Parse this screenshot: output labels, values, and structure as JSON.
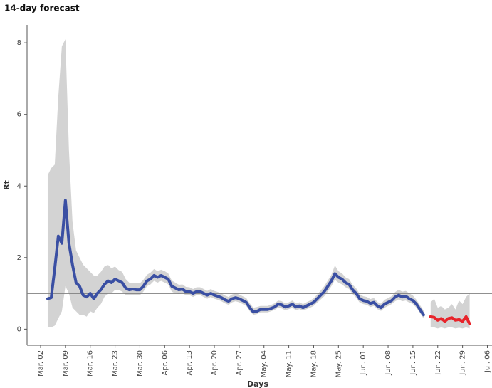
{
  "chart_data": {
    "type": "line",
    "title": "14-day forecast",
    "x_label": "Days",
    "y_label": "Rt",
    "x": [
      "Mar. 02",
      null,
      null,
      null,
      null,
      null,
      null,
      "Mar. 09",
      null,
      null,
      null,
      null,
      null,
      null,
      "Mar. 16",
      null,
      null,
      null,
      null,
      null,
      null,
      "Mar. 23",
      null,
      null,
      null,
      null,
      null,
      null,
      "Mar. 30",
      null,
      null,
      null,
      null,
      null,
      null,
      "Apr. 06",
      null,
      null,
      null,
      null,
      null,
      null,
      "Apr. 13",
      null,
      null,
      null,
      null,
      null,
      null,
      "Apr. 20",
      null,
      null,
      null,
      null,
      null,
      null,
      "Apr. 27",
      null,
      null,
      null,
      null,
      null,
      null,
      "May. 04",
      null,
      null,
      null,
      null,
      null,
      null,
      "May. 11",
      null,
      null,
      null,
      null,
      null,
      null,
      "May. 18",
      null,
      null,
      null,
      null,
      null,
      null,
      "May. 25",
      null,
      null,
      null,
      null,
      null,
      null,
      "Jun. 01",
      null,
      null,
      null,
      null,
      null,
      null,
      "Jun. 08",
      null,
      null,
      null,
      null,
      null,
      null,
      "Jun. 15",
      null,
      null,
      null,
      null,
      null,
      null,
      "Jun. 22",
      null,
      null,
      null,
      null,
      null,
      null,
      "Jun. 29",
      null,
      null,
      null,
      null,
      null,
      null,
      "Jul. 06"
    ],
    "ylim": [
      -0.45,
      8.5
    ],
    "yticks": [
      0,
      2,
      4,
      6,
      8
    ],
    "hline": 1,
    "hline_color": "#808080",
    "band_color": "#d3d3d3",
    "series": [
      {
        "color": "#3a4fa3",
        "values": [
          null,
          null,
          0.85,
          0.88,
          1.7,
          2.6,
          2.4,
          3.6,
          2.4,
          1.8,
          1.3,
          1.2,
          0.95,
          0.9,
          1.0,
          0.85,
          1.0,
          1.1,
          1.25,
          1.35,
          1.3,
          1.4,
          1.35,
          1.3,
          1.15,
          1.1,
          1.12,
          1.1,
          1.1,
          1.2,
          1.35,
          1.4,
          1.5,
          1.45,
          1.5,
          1.45,
          1.4,
          1.2,
          1.15,
          1.1,
          1.12,
          1.05,
          1.05,
          1.0,
          1.05,
          1.05,
          1.0,
          0.95,
          1.0,
          0.95,
          0.92,
          0.88,
          0.82,
          0.78,
          0.85,
          0.88,
          0.85,
          0.8,
          0.75,
          0.6,
          0.48,
          0.5,
          0.55,
          0.55,
          0.55,
          0.58,
          0.62,
          0.7,
          0.68,
          0.62,
          0.65,
          0.7,
          0.62,
          0.65,
          0.6,
          0.65,
          0.7,
          0.75,
          0.85,
          0.95,
          1.05,
          1.2,
          1.35,
          1.55,
          1.45,
          1.4,
          1.3,
          1.25,
          1.1,
          1.0,
          0.85,
          0.8,
          0.78,
          0.72,
          0.75,
          0.65,
          0.6,
          0.7,
          0.75,
          0.8,
          0.9,
          0.95,
          0.9,
          0.92,
          0.85,
          0.8,
          0.7,
          0.55,
          0.4,
          null,
          null,
          null,
          null,
          null,
          null,
          null,
          null,
          null,
          null,
          null,
          null,
          null,
          null,
          null,
          null,
          null,
          null
        ],
        "lower": [
          null,
          null,
          0.05,
          0.05,
          0.1,
          0.3,
          0.5,
          1.2,
          1.0,
          0.6,
          0.5,
          0.4,
          0.4,
          0.35,
          0.5,
          0.45,
          0.6,
          0.7,
          0.9,
          1.0,
          1.0,
          1.1,
          1.1,
          1.05,
          0.95,
          0.95,
          0.95,
          0.95,
          0.95,
          1.05,
          1.2,
          1.25,
          1.35,
          1.3,
          1.35,
          1.3,
          1.25,
          1.05,
          1.0,
          0.98,
          1.0,
          0.95,
          0.95,
          0.9,
          0.95,
          0.95,
          0.9,
          0.85,
          0.9,
          0.85,
          0.82,
          0.78,
          0.72,
          0.68,
          0.75,
          0.78,
          0.75,
          0.7,
          0.65,
          0.5,
          0.4,
          0.42,
          0.47,
          0.47,
          0.47,
          0.5,
          0.54,
          0.6,
          0.58,
          0.53,
          0.56,
          0.6,
          0.53,
          0.56,
          0.52,
          0.56,
          0.6,
          0.65,
          0.74,
          0.83,
          0.92,
          1.05,
          1.2,
          1.38,
          1.3,
          1.25,
          1.17,
          1.12,
          0.98,
          0.88,
          0.74,
          0.7,
          0.68,
          0.62,
          0.65,
          0.56,
          0.51,
          0.6,
          0.65,
          0.7,
          0.78,
          0.83,
          0.78,
          0.8,
          0.74,
          0.7,
          0.6,
          0.45,
          0.3,
          null,
          null,
          null,
          null,
          null,
          null,
          null,
          null,
          null,
          null,
          null,
          null,
          null,
          null,
          null,
          null,
          null,
          null
        ],
        "upper": [
          null,
          null,
          4.3,
          4.5,
          4.6,
          6.5,
          7.9,
          8.1,
          5.0,
          3.0,
          2.2,
          2.0,
          1.8,
          1.7,
          1.6,
          1.5,
          1.5,
          1.6,
          1.75,
          1.8,
          1.7,
          1.75,
          1.65,
          1.6,
          1.4,
          1.3,
          1.3,
          1.28,
          1.28,
          1.38,
          1.52,
          1.58,
          1.68,
          1.62,
          1.66,
          1.62,
          1.56,
          1.36,
          1.3,
          1.24,
          1.25,
          1.18,
          1.17,
          1.12,
          1.17,
          1.17,
          1.12,
          1.07,
          1.12,
          1.07,
          1.04,
          1.0,
          0.94,
          0.9,
          0.97,
          1.0,
          0.97,
          0.92,
          0.87,
          0.72,
          0.6,
          0.62,
          0.65,
          0.65,
          0.65,
          0.68,
          0.72,
          0.8,
          0.78,
          0.72,
          0.75,
          0.8,
          0.72,
          0.75,
          0.7,
          0.75,
          0.8,
          0.86,
          0.97,
          1.08,
          1.2,
          1.36,
          1.52,
          1.78,
          1.62,
          1.56,
          1.45,
          1.4,
          1.24,
          1.14,
          0.98,
          0.92,
          0.9,
          0.84,
          0.87,
          0.76,
          0.71,
          0.82,
          0.87,
          0.92,
          1.04,
          1.1,
          1.05,
          1.07,
          1.0,
          0.94,
          0.82,
          0.67,
          0.52,
          null,
          null,
          null,
          null,
          null,
          null,
          null,
          null,
          null,
          null,
          null,
          null,
          null,
          null,
          null,
          null,
          null,
          null
        ]
      },
      {
        "color": "#e8242b",
        "values": [
          null,
          null,
          null,
          null,
          null,
          null,
          null,
          null,
          null,
          null,
          null,
          null,
          null,
          null,
          null,
          null,
          null,
          null,
          null,
          null,
          null,
          null,
          null,
          null,
          null,
          null,
          null,
          null,
          null,
          null,
          null,
          null,
          null,
          null,
          null,
          null,
          null,
          null,
          null,
          null,
          null,
          null,
          null,
          null,
          null,
          null,
          null,
          null,
          null,
          null,
          null,
          null,
          null,
          null,
          null,
          null,
          null,
          null,
          null,
          null,
          null,
          null,
          null,
          null,
          null,
          null,
          null,
          null,
          null,
          null,
          null,
          null,
          null,
          null,
          null,
          null,
          null,
          null,
          null,
          null,
          null,
          null,
          null,
          null,
          null,
          null,
          null,
          null,
          null,
          null,
          null,
          null,
          null,
          null,
          null,
          null,
          null,
          null,
          null,
          null,
          null,
          null,
          null,
          null,
          null,
          null,
          null,
          null,
          null,
          null,
          0.35,
          0.33,
          0.25,
          0.3,
          0.22,
          0.3,
          0.32,
          0.25,
          0.27,
          0.22,
          0.35,
          0.15,
          null,
          null,
          null,
          null,
          null
        ],
        "lower": [
          null,
          null,
          null,
          null,
          null,
          null,
          null,
          null,
          null,
          null,
          null,
          null,
          null,
          null,
          null,
          null,
          null,
          null,
          null,
          null,
          null,
          null,
          null,
          null,
          null,
          null,
          null,
          null,
          null,
          null,
          null,
          null,
          null,
          null,
          null,
          null,
          null,
          null,
          null,
          null,
          null,
          null,
          null,
          null,
          null,
          null,
          null,
          null,
          null,
          null,
          null,
          null,
          null,
          null,
          null,
          null,
          null,
          null,
          null,
          null,
          null,
          null,
          null,
          null,
          null,
          null,
          null,
          null,
          null,
          null,
          null,
          null,
          null,
          null,
          null,
          null,
          null,
          null,
          null,
          null,
          null,
          null,
          null,
          null,
          null,
          null,
          null,
          null,
          null,
          null,
          null,
          null,
          null,
          null,
          null,
          null,
          null,
          null,
          null,
          null,
          null,
          null,
          null,
          null,
          null,
          null,
          null,
          null,
          null,
          null,
          0.05,
          0.05,
          0.02,
          0.05,
          0.02,
          0.05,
          0.05,
          0.02,
          0.04,
          0.02,
          0.05,
          0.02,
          null,
          null,
          null,
          null,
          null
        ],
        "upper": [
          null,
          null,
          null,
          null,
          null,
          null,
          null,
          null,
          null,
          null,
          null,
          null,
          null,
          null,
          null,
          null,
          null,
          null,
          null,
          null,
          null,
          null,
          null,
          null,
          null,
          null,
          null,
          null,
          null,
          null,
          null,
          null,
          null,
          null,
          null,
          null,
          null,
          null,
          null,
          null,
          null,
          null,
          null,
          null,
          null,
          null,
          null,
          null,
          null,
          null,
          null,
          null,
          null,
          null,
          null,
          null,
          null,
          null,
          null,
          null,
          null,
          null,
          null,
          null,
          null,
          null,
          null,
          null,
          null,
          null,
          null,
          null,
          null,
          null,
          null,
          null,
          null,
          null,
          null,
          null,
          null,
          null,
          null,
          null,
          null,
          null,
          null,
          null,
          null,
          null,
          null,
          null,
          null,
          null,
          null,
          null,
          null,
          null,
          null,
          null,
          null,
          null,
          null,
          null,
          null,
          null,
          null,
          null,
          null,
          null,
          0.75,
          0.85,
          0.6,
          0.65,
          0.55,
          0.6,
          0.7,
          0.55,
          0.8,
          0.7,
          0.9,
          1.0,
          null,
          null,
          null,
          null,
          null
        ]
      }
    ]
  }
}
